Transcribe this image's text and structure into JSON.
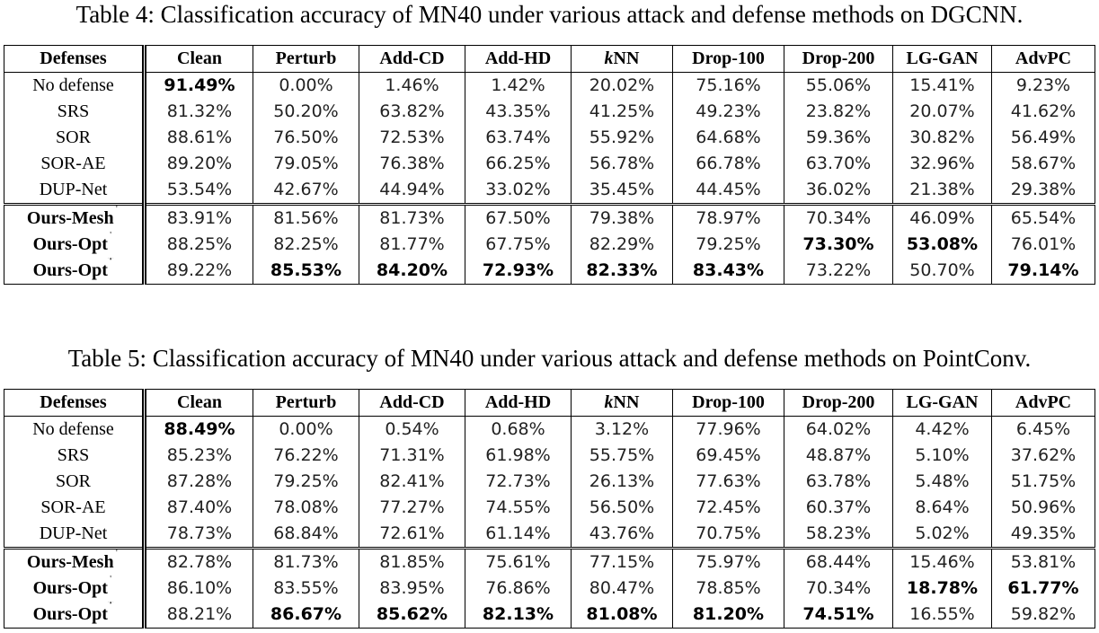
{
  "tables": [
    {
      "caption": "Table 4: Classification accuracy of MN40 under various attack and defense methods on DGCNN.",
      "headers": [
        "Defenses",
        "Clean",
        "Perturb",
        "Add-CD",
        "Add-HD",
        "kNN",
        "Drop-100",
        "Drop-200",
        "LG-GAN",
        "AdvPC"
      ],
      "rows": [
        {
          "label": "No defense",
          "cells": [
            "91.49%",
            "0.00%",
            "1.46%",
            "1.42%",
            "20.02%",
            "75.16%",
            "55.06%",
            "15.41%",
            "9.23%"
          ],
          "bold": [
            0
          ]
        },
        {
          "label": "SRS",
          "cells": [
            "81.32%",
            "50.20%",
            "63.82%",
            "43.35%",
            "41.25%",
            "49.23%",
            "23.82%",
            "20.07%",
            "41.62%"
          ],
          "bold": []
        },
        {
          "label": "SOR",
          "cells": [
            "88.61%",
            "76.50%",
            "72.53%",
            "63.74%",
            "55.92%",
            "64.68%",
            "59.36%",
            "30.82%",
            "56.49%"
          ],
          "bold": []
        },
        {
          "label": "SOR-AE",
          "cells": [
            "89.20%",
            "79.05%",
            "76.38%",
            "66.25%",
            "56.78%",
            "66.78%",
            "63.70%",
            "32.96%",
            "58.67%"
          ],
          "bold": []
        },
        {
          "label": "DUP-Net",
          "cells": [
            "53.54%",
            "42.67%",
            "44.94%",
            "33.02%",
            "35.45%",
            "44.45%",
            "36.02%",
            "21.38%",
            "29.38%"
          ],
          "bold": []
        },
        {
          "label": "Ours-Mesh",
          "sup": "†",
          "ours": true,
          "group_start": true,
          "cells": [
            "83.91%",
            "81.56%",
            "81.73%",
            "67.50%",
            "79.38%",
            "78.97%",
            "70.34%",
            "46.09%",
            "65.54%"
          ],
          "bold": []
        },
        {
          "label": "Ours-Opt",
          "sup": "†",
          "ours": true,
          "cells": [
            "88.25%",
            "82.25%",
            "81.77%",
            "67.75%",
            "82.29%",
            "79.25%",
            "73.30%",
            "53.08%",
            "76.01%"
          ],
          "bold": [
            6,
            7
          ]
        },
        {
          "label": "Ours-Opt",
          "sup": "‡",
          "ours": true,
          "cells": [
            "89.22%",
            "85.53%",
            "84.20%",
            "72.93%",
            "82.33%",
            "83.43%",
            "73.22%",
            "50.70%",
            "79.14%"
          ],
          "bold": [
            1,
            2,
            3,
            4,
            5,
            8
          ]
        }
      ]
    },
    {
      "caption": "Table 5: Classification accuracy of MN40 under various attack and defense methods on PointConv.",
      "headers": [
        "Defenses",
        "Clean",
        "Perturb",
        "Add-CD",
        "Add-HD",
        "kNN",
        "Drop-100",
        "Drop-200",
        "LG-GAN",
        "AdvPC"
      ],
      "rows": [
        {
          "label": "No defense",
          "cells": [
            "88.49%",
            "0.00%",
            "0.54%",
            "0.68%",
            "3.12%",
            "77.96%",
            "64.02%",
            "4.42%",
            "6.45%"
          ],
          "bold": [
            0
          ]
        },
        {
          "label": "SRS",
          "cells": [
            "85.23%",
            "76.22%",
            "71.31%",
            "61.98%",
            "55.75%",
            "69.45%",
            "48.87%",
            "5.10%",
            "37.62%"
          ],
          "bold": []
        },
        {
          "label": "SOR",
          "cells": [
            "87.28%",
            "79.25%",
            "82.41%",
            "72.73%",
            "26.13%",
            "77.63%",
            "63.78%",
            "5.48%",
            "51.75%"
          ],
          "bold": []
        },
        {
          "label": "SOR-AE",
          "cells": [
            "87.40%",
            "78.08%",
            "77.27%",
            "74.55%",
            "56.50%",
            "72.45%",
            "60.37%",
            "8.64%",
            "50.96%"
          ],
          "bold": []
        },
        {
          "label": "DUP-Net",
          "cells": [
            "78.73%",
            "68.84%",
            "72.61%",
            "61.14%",
            "43.76%",
            "70.75%",
            "58.23%",
            "5.02%",
            "49.35%"
          ],
          "bold": []
        },
        {
          "label": "Ours-Mesh",
          "sup": "†",
          "ours": true,
          "group_start": true,
          "cells": [
            "82.78%",
            "81.73%",
            "81.85%",
            "75.61%",
            "77.15%",
            "75.97%",
            "68.44%",
            "15.46%",
            "53.81%"
          ],
          "bold": []
        },
        {
          "label": "Ours-Opt",
          "sup": "†",
          "ours": true,
          "cells": [
            "86.10%",
            "83.55%",
            "83.95%",
            "76.86%",
            "80.47%",
            "78.85%",
            "70.34%",
            "18.78%",
            "61.77%"
          ],
          "bold": [
            7,
            8
          ]
        },
        {
          "label": "Ours-Opt",
          "sup": "‡",
          "ours": true,
          "cells": [
            "88.21%",
            "86.67%",
            "85.62%",
            "82.13%",
            "81.08%",
            "81.20%",
            "74.51%",
            "16.55%",
            "59.82%"
          ],
          "bold": [
            1,
            2,
            3,
            4,
            5,
            6
          ]
        }
      ]
    }
  ]
}
